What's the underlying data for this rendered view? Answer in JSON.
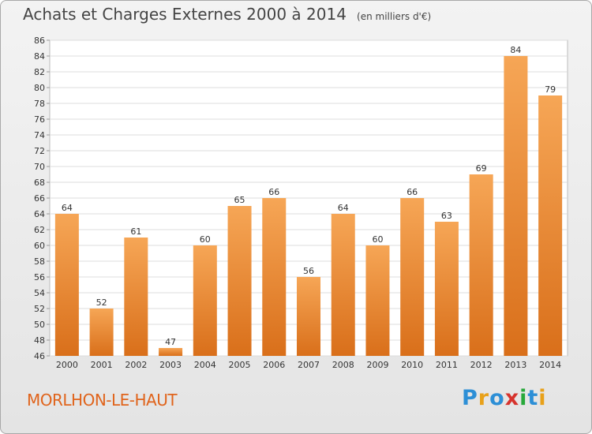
{
  "header": {
    "title": "Achats et Charges Externes 2000 à 2014",
    "unit": "(en milliers d'€)"
  },
  "footer": {
    "location": "MORLHON-LE-HAUT",
    "brand": "Proxiti",
    "brand_colors": [
      "#2d8fd6",
      "#e8a11a",
      "#2d8fd6",
      "#d6332d",
      "#27a83a",
      "#2d8fd6",
      "#e8a11a"
    ]
  },
  "colors": {
    "bar_top": "#f6a656",
    "bar_bottom": "#d96f1a",
    "plot_bg": "#ffffff",
    "grid": "#dcdcdc"
  },
  "chart_data": {
    "type": "bar",
    "title": "Achats et Charges Externes 2000 à 2014",
    "subtitle": "(en milliers d'€)",
    "categories": [
      "2000",
      "2001",
      "2002",
      "2003",
      "2004",
      "2005",
      "2006",
      "2007",
      "2008",
      "2009",
      "2010",
      "2011",
      "2012",
      "2013",
      "2014"
    ],
    "values": [
      64,
      52,
      61,
      47,
      60,
      65,
      66,
      56,
      64,
      60,
      66,
      63,
      69,
      84,
      79
    ],
    "ylim": [
      46,
      86
    ],
    "yticks": [
      46,
      48,
      50,
      52,
      54,
      56,
      58,
      60,
      62,
      64,
      66,
      68,
      70,
      72,
      74,
      76,
      78,
      80,
      82,
      84,
      86
    ],
    "grid": true,
    "data_labels": true
  }
}
